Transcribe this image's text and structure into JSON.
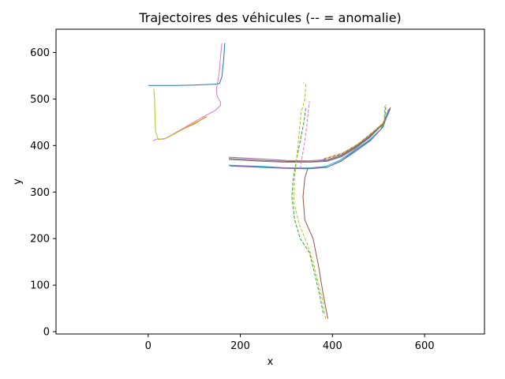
{
  "chart_data": {
    "type": "line",
    "title": "Trajectoires des véhicules (-- = anomalie)",
    "xlabel": "x",
    "ylabel": "y",
    "xlim": [
      -200,
      730
    ],
    "ylim": [
      -5,
      650
    ],
    "xticks": [
      0,
      200,
      400,
      600
    ],
    "yticks": [
      0,
      100,
      200,
      300,
      400,
      500,
      600
    ],
    "grid": false,
    "colors": {
      "blue": "#1f77b4",
      "orange": "#ff7f0e",
      "green": "#2ca02c",
      "red": "#d62728",
      "purple": "#9467bd",
      "brown": "#8c564b",
      "pink": "#e377c2",
      "gray": "#7f7f7f",
      "olive": "#bcbd22",
      "cyan": "#17becf"
    },
    "series": [
      {
        "color": "#1f77b4",
        "dashed": false,
        "points": [
          [
            0,
            529
          ],
          [
            60,
            529
          ],
          [
            100,
            530
          ],
          [
            150,
            532
          ],
          [
            155,
            534
          ],
          [
            160,
            548
          ],
          [
            163,
            575
          ],
          [
            165,
            600
          ],
          [
            166,
            620
          ]
        ]
      },
      {
        "color": "#e377c2",
        "dashed": false,
        "points": [
          [
            160,
            620
          ],
          [
            157,
            590
          ],
          [
            154,
            555
          ],
          [
            148,
            520
          ],
          [
            150,
            505
          ],
          [
            157,
            494
          ],
          [
            157,
            486
          ],
          [
            145,
            475
          ],
          [
            120,
            462
          ],
          [
            90,
            445
          ],
          [
            55,
            425
          ],
          [
            35,
            414
          ],
          [
            18,
            414
          ],
          [
            10,
            410
          ]
        ]
      },
      {
        "color": "#bcbd22",
        "dashed": false,
        "points": [
          [
            12,
            522
          ],
          [
            14,
            500
          ],
          [
            15,
            460
          ],
          [
            16,
            430
          ],
          [
            22,
            413
          ],
          [
            40,
            416
          ],
          [
            70,
            432
          ],
          [
            100,
            448
          ],
          [
            128,
            462
          ]
        ]
      },
      {
        "color": "#ff7f0e",
        "dashed": false,
        "points": [
          [
            80,
            438
          ],
          [
            100,
            446
          ],
          [
            125,
            462
          ]
        ]
      },
      {
        "color": "#9467bd",
        "dashed": false,
        "points": [
          [
            175,
            375
          ],
          [
            250,
            371
          ],
          [
            300,
            368
          ],
          [
            350,
            367
          ],
          [
            390,
            370
          ],
          [
            420,
            380
          ],
          [
            450,
            398
          ],
          [
            480,
            420
          ],
          [
            510,
            448
          ],
          [
            525,
            478
          ]
        ]
      },
      {
        "color": "#8c564b",
        "dashed": false,
        "points": [
          [
            175,
            372
          ],
          [
            250,
            368
          ],
          [
            300,
            366
          ],
          [
            350,
            365
          ],
          [
            390,
            368
          ],
          [
            420,
            378
          ],
          [
            450,
            396
          ],
          [
            480,
            418
          ],
          [
            510,
            446
          ],
          [
            526,
            482
          ]
        ]
      },
      {
        "color": "#7f7f7f",
        "dashed": false,
        "points": [
          [
            175,
            370
          ],
          [
            250,
            366
          ],
          [
            300,
            364
          ],
          [
            350,
            364
          ],
          [
            388,
            366
          ],
          [
            420,
            376
          ],
          [
            450,
            394
          ],
          [
            480,
            416
          ],
          [
            508,
            444
          ],
          [
            522,
            478
          ]
        ]
      },
      {
        "color": "#17becf",
        "dashed": false,
        "points": [
          [
            175,
            358
          ],
          [
            250,
            355
          ],
          [
            300,
            352
          ],
          [
            350,
            352
          ],
          [
            385,
            355
          ],
          [
            415,
            368
          ],
          [
            445,
            388
          ],
          [
            480,
            412
          ],
          [
            505,
            435
          ],
          [
            522,
            475
          ]
        ]
      },
      {
        "color": "#1f77b4",
        "dashed": false,
        "points": [
          [
            178,
            356
          ],
          [
            250,
            353
          ],
          [
            300,
            351
          ],
          [
            350,
            350
          ],
          [
            388,
            353
          ],
          [
            418,
            366
          ],
          [
            448,
            386
          ],
          [
            482,
            410
          ],
          [
            508,
            438
          ],
          [
            525,
            478
          ]
        ]
      },
      {
        "color": "#9467bd",
        "dashed": false,
        "points": [
          [
            176,
            357
          ],
          [
            250,
            354
          ],
          [
            300,
            352
          ],
          [
            352,
            351
          ],
          [
            390,
            354
          ],
          [
            420,
            368
          ],
          [
            450,
            390
          ],
          [
            485,
            414
          ],
          [
            510,
            440
          ],
          [
            524,
            480
          ]
        ]
      },
      {
        "color": "#8c564b",
        "dashed": false,
        "points": [
          [
            390,
            28
          ],
          [
            380,
            80
          ],
          [
            370,
            140
          ],
          [
            358,
            200
          ],
          [
            340,
            240
          ],
          [
            336,
            290
          ],
          [
            340,
            330
          ],
          [
            346,
            350
          ]
        ]
      },
      {
        "color": "#2ca02c",
        "dashed": true,
        "points": [
          [
            380,
            40
          ],
          [
            372,
            80
          ],
          [
            360,
            130
          ],
          [
            350,
            170
          ],
          [
            330,
            200
          ],
          [
            318,
            240
          ],
          [
            312,
            290
          ],
          [
            315,
            330
          ],
          [
            322,
            370
          ],
          [
            330,
            410
          ],
          [
            338,
            450
          ],
          [
            342,
            480
          ]
        ]
      },
      {
        "color": "#bcbd22",
        "dashed": true,
        "points": [
          [
            385,
            28
          ],
          [
            378,
            70
          ],
          [
            368,
            110
          ],
          [
            358,
            150
          ],
          [
            345,
            190
          ],
          [
            328,
            230
          ],
          [
            316,
            280
          ],
          [
            318,
            330
          ],
          [
            323,
            380
          ],
          [
            328,
            430
          ],
          [
            332,
            470
          ],
          [
            340,
            500
          ],
          [
            342,
            530
          ],
          [
            336,
            535
          ]
        ]
      },
      {
        "color": "#e377c2",
        "dashed": true,
        "points": [
          [
            330,
            350
          ],
          [
            335,
            380
          ],
          [
            340,
            410
          ],
          [
            344,
            440
          ],
          [
            350,
            495
          ]
        ]
      },
      {
        "color": "#2ca02c",
        "dashed": true,
        "points": [
          [
            380,
            370
          ],
          [
            420,
            382
          ],
          [
            455,
            402
          ],
          [
            485,
            426
          ],
          [
            513,
            448
          ],
          [
            516,
            488
          ]
        ]
      },
      {
        "color": "#ff7f0e",
        "dashed": true,
        "points": [
          [
            382,
            372
          ],
          [
            422,
            384
          ],
          [
            456,
            404
          ],
          [
            486,
            428
          ],
          [
            512,
            450
          ],
          [
            514,
            485
          ]
        ]
      }
    ]
  }
}
